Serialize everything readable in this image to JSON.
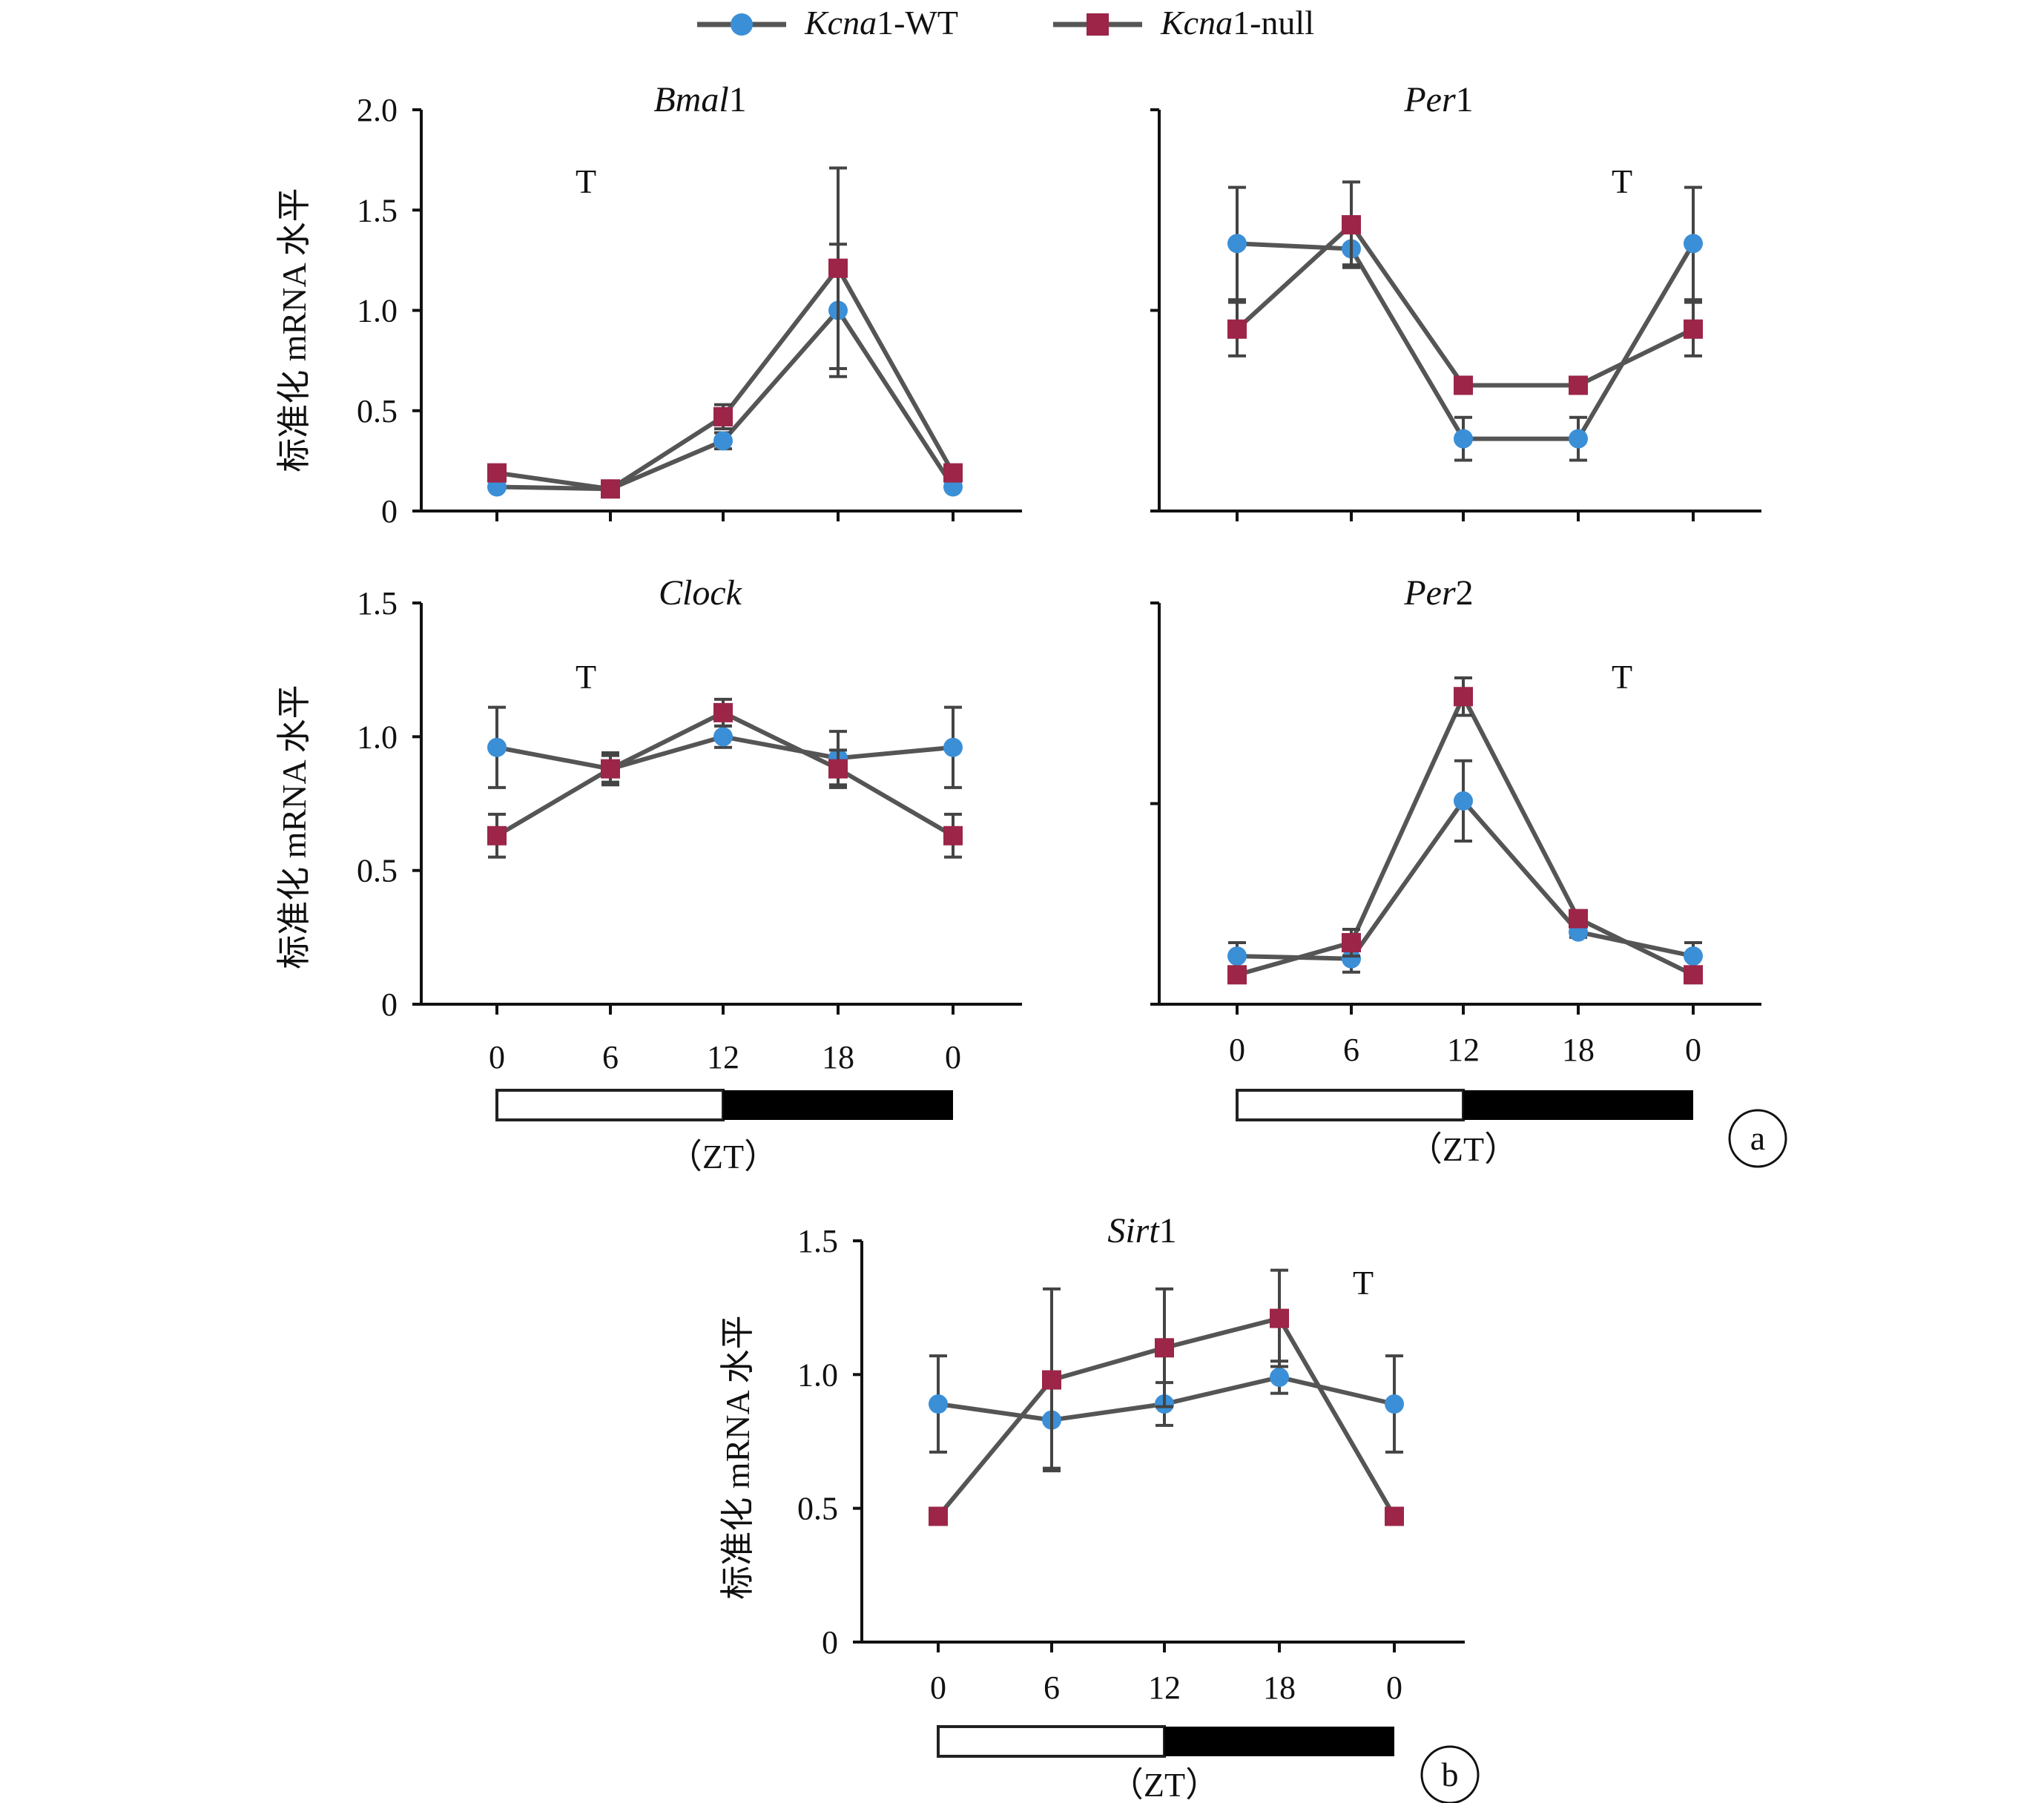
{
  "legend": {
    "items": [
      {
        "label_prefix": "Kcna",
        "label_suffix": "1-WT",
        "color": "#3b8fd6",
        "marker": "circle"
      },
      {
        "label_prefix": "Kcna",
        "label_suffix": "1-null",
        "color": "#9c2548",
        "marker": "square"
      }
    ],
    "line_color": "#555555"
  },
  "ylabel": "标准化 mRNA 水平",
  "zt_label": "（ZT）",
  "panel_labels": [
    "a",
    "b"
  ],
  "chart_data": [
    {
      "type": "line",
      "title_italic": "Bmal",
      "title_plain": "1",
      "marker_text": "T",
      "categories": [
        "0",
        "6",
        "12",
        "18",
        "0"
      ],
      "ylim": [
        0,
        2.0
      ],
      "yticks": [
        "0",
        "0.5",
        "1.0",
        "1.5",
        "2.0"
      ],
      "series": [
        {
          "name": "Kcna1-WT",
          "values": [
            0.12,
            0.11,
            0.35,
            1.0,
            0.12
          ],
          "errors": [
            0,
            0,
            0.04,
            0.33,
            0
          ]
        },
        {
          "name": "Kcna1-null",
          "values": [
            0.19,
            0.11,
            0.47,
            1.21,
            0.19
          ],
          "errors": [
            0,
            0,
            0.06,
            0.5,
            0
          ]
        }
      ]
    },
    {
      "type": "line",
      "title_italic": "Per",
      "title_plain": "1",
      "marker_text": "T",
      "categories": [
        "0",
        "6",
        "12",
        "18",
        "0"
      ],
      "ylim": [
        0,
        1.5
      ],
      "yticks": [
        "",
        "",
        ""
      ],
      "series": [
        {
          "name": "Kcna1-WT",
          "values": [
            1.0,
            0.98,
            0.27,
            0.27,
            1.0
          ],
          "errors": [
            0.21,
            0.06,
            0.08,
            0.08,
            0.21
          ]
        },
        {
          "name": "Kcna1-null",
          "values": [
            0.68,
            1.07,
            0.47,
            0.47,
            0.68
          ],
          "errors": [
            0.1,
            0.16,
            0.03,
            0.03,
            0.1
          ]
        }
      ]
    },
    {
      "type": "line",
      "title_italic": "Clock",
      "title_plain": "",
      "marker_text": "T",
      "categories": [
        "0",
        "6",
        "12",
        "18",
        "0"
      ],
      "ylim": [
        0,
        1.5
      ],
      "yticks": [
        "0",
        "0.5",
        "1.0",
        "1.5"
      ],
      "series": [
        {
          "name": "Kcna1-WT",
          "values": [
            0.96,
            0.88,
            1.0,
            0.92,
            0.96
          ],
          "errors": [
            0.15,
            0.05,
            0.04,
            0.1,
            0.15
          ]
        },
        {
          "name": "Kcna1-null",
          "values": [
            0.63,
            0.88,
            1.09,
            0.88,
            0.63
          ],
          "errors": [
            0.08,
            0.06,
            0.05,
            0.07,
            0.08
          ]
        }
      ]
    },
    {
      "type": "line",
      "title_italic": "Per",
      "title_plain": "2",
      "marker_text": "T",
      "categories": [
        "0",
        "6",
        "12",
        "18",
        "0"
      ],
      "ylim": [
        0,
        1.5
      ],
      "yticks": [
        "",
        "",
        ""
      ],
      "series": [
        {
          "name": "Kcna1-WT",
          "values": [
            0.18,
            0.17,
            0.76,
            0.27,
            0.18
          ],
          "errors": [
            0.05,
            0.05,
            0.15,
            0.02,
            0.05
          ]
        },
        {
          "name": "Kcna1-null",
          "values": [
            0.11,
            0.23,
            1.15,
            0.32,
            0.11
          ],
          "errors": [
            0,
            0.05,
            0.07,
            0.02,
            0
          ]
        }
      ]
    },
    {
      "type": "line",
      "title_italic": "Sirt",
      "title_plain": "1",
      "marker_text": "T",
      "categories": [
        "0",
        "6",
        "12",
        "18",
        "0"
      ],
      "ylim": [
        0,
        1.5
      ],
      "yticks": [
        "0",
        "0.5",
        "1.0",
        "1.5"
      ],
      "series": [
        {
          "name": "Kcna1-WT",
          "values": [
            0.89,
            0.83,
            0.89,
            0.99,
            0.89
          ],
          "errors": [
            0.18,
            0.18,
            0.08,
            0.06,
            0.18
          ]
        },
        {
          "name": "Kcna1-null",
          "values": [
            0.47,
            0.98,
            1.1,
            1.21,
            0.47
          ],
          "errors": [
            0,
            0.34,
            0.22,
            0.18,
            0
          ]
        }
      ]
    }
  ]
}
